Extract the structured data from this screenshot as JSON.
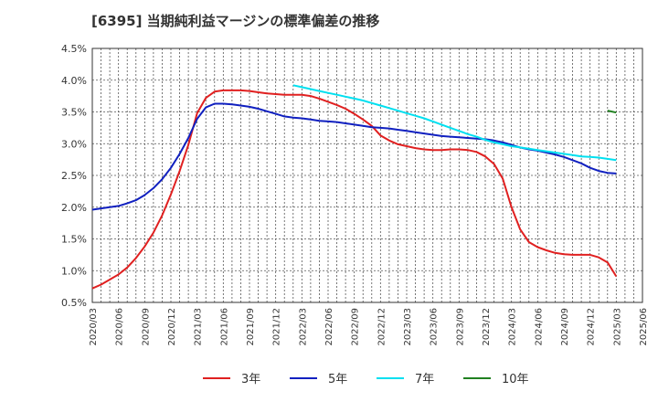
{
  "chart_data": {
    "type": "line",
    "title": "[6395]  当期純利益マージンの標準偏差の推移",
    "xlabel": "",
    "ylabel": "",
    "ylim": [
      0.5,
      4.5
    ],
    "yticks": [
      "0.5%",
      "1.0%",
      "1.5%",
      "2.0%",
      "2.5%",
      "3.0%",
      "3.5%",
      "4.0%",
      "4.5%"
    ],
    "xticks": [
      "2020/03",
      "2020/06",
      "2020/09",
      "2020/12",
      "2021/03",
      "2021/06",
      "2021/09",
      "2021/12",
      "2022/03",
      "2022/06",
      "2022/09",
      "2022/12",
      "2023/03",
      "2023/06",
      "2023/09",
      "2023/12",
      "2024/03",
      "2024/06",
      "2024/09",
      "2024/12",
      "2025/03",
      "2025/06"
    ],
    "grid": true,
    "legend_position": "bottom",
    "series": [
      {
        "name": "3年",
        "color": "#e02020",
        "points": [
          [
            "2020/03",
            0.72
          ],
          [
            "2020/04",
            0.78
          ],
          [
            "2020/05",
            0.86
          ],
          [
            "2020/06",
            0.94
          ],
          [
            "2020/07",
            1.05
          ],
          [
            "2020/08",
            1.2
          ],
          [
            "2020/09",
            1.38
          ],
          [
            "2020/10",
            1.6
          ],
          [
            "2020/11",
            1.87
          ],
          [
            "2020/12",
            2.2
          ],
          [
            "2021/01",
            2.57
          ],
          [
            "2021/02",
            2.98
          ],
          [
            "2021/03",
            3.48
          ],
          [
            "2021/04",
            3.72
          ],
          [
            "2021/05",
            3.82
          ],
          [
            "2021/06",
            3.84
          ],
          [
            "2021/07",
            3.84
          ],
          [
            "2021/08",
            3.84
          ],
          [
            "2021/09",
            3.83
          ],
          [
            "2021/10",
            3.81
          ],
          [
            "2021/11",
            3.79
          ],
          [
            "2021/12",
            3.78
          ],
          [
            "2022/01",
            3.77
          ],
          [
            "2022/02",
            3.77
          ],
          [
            "2022/03",
            3.77
          ],
          [
            "2022/04",
            3.75
          ],
          [
            "2022/05",
            3.71
          ],
          [
            "2022/06",
            3.66
          ],
          [
            "2022/07",
            3.61
          ],
          [
            "2022/08",
            3.55
          ],
          [
            "2022/09",
            3.47
          ],
          [
            "2022/10",
            3.38
          ],
          [
            "2022/11",
            3.28
          ],
          [
            "2022/12",
            3.13
          ],
          [
            "2023/01",
            3.05
          ],
          [
            "2023/02",
            2.99
          ],
          [
            "2023/03",
            2.96
          ],
          [
            "2023/04",
            2.93
          ],
          [
            "2023/05",
            2.91
          ],
          [
            "2023/06",
            2.9
          ],
          [
            "2023/07",
            2.9
          ],
          [
            "2023/08",
            2.91
          ],
          [
            "2023/09",
            2.91
          ],
          [
            "2023/10",
            2.9
          ],
          [
            "2023/11",
            2.87
          ],
          [
            "2023/12",
            2.8
          ],
          [
            "2024/01",
            2.68
          ],
          [
            "2024/02",
            2.45
          ],
          [
            "2024/03",
            2.0
          ],
          [
            "2024/04",
            1.65
          ],
          [
            "2024/05",
            1.45
          ],
          [
            "2024/06",
            1.37
          ],
          [
            "2024/07",
            1.32
          ],
          [
            "2024/08",
            1.28
          ],
          [
            "2024/09",
            1.26
          ],
          [
            "2024/10",
            1.25
          ],
          [
            "2024/11",
            1.25
          ],
          [
            "2024/12",
            1.25
          ],
          [
            "2025/01",
            1.21
          ],
          [
            "2025/02",
            1.13
          ],
          [
            "2025/03",
            0.91
          ]
        ]
      },
      {
        "name": "5年",
        "color": "#1020c0",
        "points": [
          [
            "2020/03",
            1.96
          ],
          [
            "2020/04",
            1.98
          ],
          [
            "2020/05",
            2.0
          ],
          [
            "2020/06",
            2.02
          ],
          [
            "2020/07",
            2.06
          ],
          [
            "2020/08",
            2.11
          ],
          [
            "2020/09",
            2.19
          ],
          [
            "2020/10",
            2.3
          ],
          [
            "2020/11",
            2.44
          ],
          [
            "2020/12",
            2.62
          ],
          [
            "2021/01",
            2.84
          ],
          [
            "2021/02",
            3.09
          ],
          [
            "2021/03",
            3.39
          ],
          [
            "2021/04",
            3.57
          ],
          [
            "2021/05",
            3.63
          ],
          [
            "2021/06",
            3.63
          ],
          [
            "2021/07",
            3.62
          ],
          [
            "2021/08",
            3.6
          ],
          [
            "2021/09",
            3.58
          ],
          [
            "2021/10",
            3.55
          ],
          [
            "2021/11",
            3.51
          ],
          [
            "2021/12",
            3.47
          ],
          [
            "2022/01",
            3.43
          ],
          [
            "2022/02",
            3.41
          ],
          [
            "2022/03",
            3.4
          ],
          [
            "2022/04",
            3.38
          ],
          [
            "2022/05",
            3.36
          ],
          [
            "2022/06",
            3.35
          ],
          [
            "2022/07",
            3.34
          ],
          [
            "2022/08",
            3.32
          ],
          [
            "2022/09",
            3.3
          ],
          [
            "2022/10",
            3.28
          ],
          [
            "2022/11",
            3.26
          ],
          [
            "2022/12",
            3.25
          ],
          [
            "2023/01",
            3.24
          ],
          [
            "2023/02",
            3.22
          ],
          [
            "2023/03",
            3.2
          ],
          [
            "2023/04",
            3.18
          ],
          [
            "2023/05",
            3.16
          ],
          [
            "2023/06",
            3.14
          ],
          [
            "2023/07",
            3.12
          ],
          [
            "2023/08",
            3.11
          ],
          [
            "2023/09",
            3.1
          ],
          [
            "2023/10",
            3.09
          ],
          [
            "2023/11",
            3.08
          ],
          [
            "2023/12",
            3.07
          ],
          [
            "2024/01",
            3.05
          ],
          [
            "2024/02",
            3.02
          ],
          [
            "2024/03",
            2.98
          ],
          [
            "2024/04",
            2.94
          ],
          [
            "2024/05",
            2.91
          ],
          [
            "2024/06",
            2.89
          ],
          [
            "2024/07",
            2.86
          ],
          [
            "2024/08",
            2.83
          ],
          [
            "2024/09",
            2.79
          ],
          [
            "2024/10",
            2.74
          ],
          [
            "2024/11",
            2.69
          ],
          [
            "2024/12",
            2.62
          ],
          [
            "2025/01",
            2.57
          ],
          [
            "2025/02",
            2.54
          ],
          [
            "2025/03",
            2.53
          ]
        ]
      },
      {
        "name": "7年",
        "color": "#00e0f0",
        "points": [
          [
            "2022/02",
            3.92
          ],
          [
            "2022/03",
            3.89
          ],
          [
            "2022/04",
            3.86
          ],
          [
            "2022/05",
            3.83
          ],
          [
            "2022/06",
            3.8
          ],
          [
            "2022/07",
            3.77
          ],
          [
            "2022/08",
            3.74
          ],
          [
            "2022/09",
            3.71
          ],
          [
            "2022/10",
            3.68
          ],
          [
            "2022/11",
            3.64
          ],
          [
            "2022/12",
            3.6
          ],
          [
            "2023/01",
            3.56
          ],
          [
            "2023/02",
            3.52
          ],
          [
            "2023/03",
            3.48
          ],
          [
            "2023/04",
            3.44
          ],
          [
            "2023/05",
            3.4
          ],
          [
            "2023/06",
            3.35
          ],
          [
            "2023/07",
            3.3
          ],
          [
            "2023/08",
            3.25
          ],
          [
            "2023/09",
            3.2
          ],
          [
            "2023/10",
            3.15
          ],
          [
            "2023/11",
            3.11
          ],
          [
            "2023/12",
            3.06
          ],
          [
            "2024/01",
            3.02
          ],
          [
            "2024/02",
            2.99
          ],
          [
            "2024/03",
            2.96
          ],
          [
            "2024/04",
            2.94
          ],
          [
            "2024/05",
            2.92
          ],
          [
            "2024/06",
            2.9
          ],
          [
            "2024/07",
            2.88
          ],
          [
            "2024/08",
            2.86
          ],
          [
            "2024/09",
            2.84
          ],
          [
            "2024/10",
            2.82
          ],
          [
            "2024/11",
            2.8
          ],
          [
            "2024/12",
            2.79
          ],
          [
            "2025/01",
            2.78
          ],
          [
            "2025/02",
            2.76
          ],
          [
            "2025/03",
            2.74
          ]
        ]
      },
      {
        "name": "10年",
        "color": "#208020",
        "points": [
          [
            "2025/02",
            3.52
          ],
          [
            "2025/03",
            3.49
          ]
        ]
      }
    ]
  }
}
